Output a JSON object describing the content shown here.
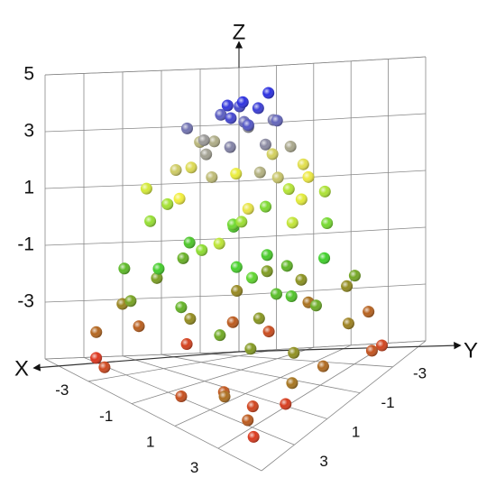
{
  "chart_data": {
    "type": "scatter3d",
    "xlabel": "X",
    "ylabel": "Y",
    "zlabel": "Z",
    "xlim": [
      -5,
      5
    ],
    "ylim": [
      -5,
      5
    ],
    "zlim": [
      -5,
      5
    ],
    "xticks": [
      -3,
      -1,
      1,
      3
    ],
    "yticks": [
      -3,
      -1,
      1,
      3
    ],
    "zticks": [
      -3,
      -1,
      1,
      3,
      5
    ],
    "grid": true,
    "colorscale": [
      [
        -5,
        "#e0301c"
      ],
      [
        -2.5,
        "#8f8f1f"
      ],
      [
        -0.5,
        "#3fd02a"
      ],
      [
        1.8,
        "#f2ee3a"
      ],
      [
        3.2,
        "#a9a78c"
      ],
      [
        4.8,
        "#2b2fe0"
      ]
    ],
    "x": [
      0,
      0.5,
      -0.4,
      0.8,
      -0.7,
      0.2,
      -1,
      1,
      0.3,
      -0.2,
      1.3,
      -1.2,
      0.6,
      -0.9,
      1.5,
      -1.6,
      0.1,
      -0.3,
      1.8,
      -1.4,
      2,
      -2.1,
      0.4,
      -0.5,
      1.7,
      -1.8,
      1.9,
      -1.5,
      2.4,
      -2.5,
      0.9,
      -0.8,
      2.8,
      -2.9,
      0.6,
      -0.4,
      2.3,
      -2.4,
      2.5,
      -2.2,
      3.2,
      -3.3,
      1.2,
      -1.1,
      3.5,
      -3.1,
      1.6,
      -1.7,
      0.2,
      1,
      -1.3,
      0.5,
      3.8,
      -3.7,
      0.3,
      -0.6,
      3.2,
      -3,
      3,
      -2.9,
      4,
      -4.1,
      1.8,
      -1.9,
      4.1,
      -3.8,
      2.2,
      -2.3,
      1.5,
      -0.9,
      0.7,
      2.6,
      4.4,
      -4.3,
      0.8,
      -0.7,
      4,
      -3.9,
      3.7,
      -3.6,
      4.6,
      -4.5,
      2.4,
      -2.6,
      4.5,
      -4.6,
      2.9,
      -2.8,
      3.3,
      1.9,
      2.7,
      3.9
    ],
    "y": [
      0,
      -0.3,
      0.4,
      0.6,
      -0.6,
      0.9,
      0.1,
      -0.8,
      -1.1,
      -0.3,
      0.2,
      0.8,
      1.4,
      -1.3,
      -1,
      -0.2,
      -1.6,
      1.7,
      1.1,
      1.5,
      0.3,
      0.5,
      2.2,
      -2.2,
      -1.8,
      -1.6,
      1.9,
      2,
      -0.6,
      -0.4,
      -2.4,
      2.6,
      0.4,
      0.9,
      3,
      -3,
      -2.2,
      -2.1,
      2.4,
      2.6,
      -1,
      -0.7,
      -3.3,
      3.4,
      1.3,
      1.8,
      3.2,
      -3.1,
      0.3,
      1.5,
      -0.9,
      -0.8,
      0.2,
      0.6,
      3.8,
      -3.9,
      -2.8,
      -2.9,
      3.1,
      3.2,
      -1.5,
      -1.2,
      -3.9,
      4,
      1.9,
      2.3,
      3.9,
      -3.8,
      0.8,
      1.9,
      -1.7,
      1.1,
      0.5,
      0.9,
      4.4,
      -4.4,
      -3.5,
      -3.6,
      3.8,
      3.9,
      -2.2,
      -1.8,
      -4.5,
      4.6,
      2.5,
      2.8,
      4.5,
      -4.4,
      1.4,
      3.3,
      2.6,
      4.4
    ],
    "z": [
      4.8,
      4.6,
      4.7,
      4.3,
      4.4,
      4.5,
      4.2,
      4.1,
      4.9,
      4,
      3.6,
      3.4,
      3.7,
      3.5,
      3.2,
      3.1,
      3.8,
      3.3,
      3,
      3.9,
      2.6,
      2.2,
      2.8,
      2.4,
      1.9,
      1.7,
      2,
      2.5,
      1.6,
      2.9,
      2.1,
      1.8,
      1.2,
      0.8,
      0.5,
      1,
      0.2,
      -0.3,
      -0.1,
      0.6,
      -0.5,
      -0.8,
      0.9,
      -0.6,
      -0.9,
      1.4,
      1.1,
      0.3,
      0.7,
      -0.4,
      0.1,
      -0.7,
      -1.6,
      -2,
      -1.4,
      -2.4,
      -1.8,
      -2.7,
      -2.2,
      -1.2,
      -2.9,
      -1.5,
      -2.6,
      -1.9,
      -2.5,
      -2.8,
      -1.7,
      -2.1,
      -2.3,
      -2.6,
      -1.3,
      -1.1,
      -3.5,
      -3.8,
      -4.2,
      -3.3,
      -4.5,
      -3.9,
      -4.8,
      -3.6,
      -4.1,
      -4.6,
      -3.7,
      -4.4,
      -3.2,
      -4.9,
      -3.4,
      -4.3,
      -4.7,
      -4,
      -4.5,
      -3.9
    ]
  }
}
